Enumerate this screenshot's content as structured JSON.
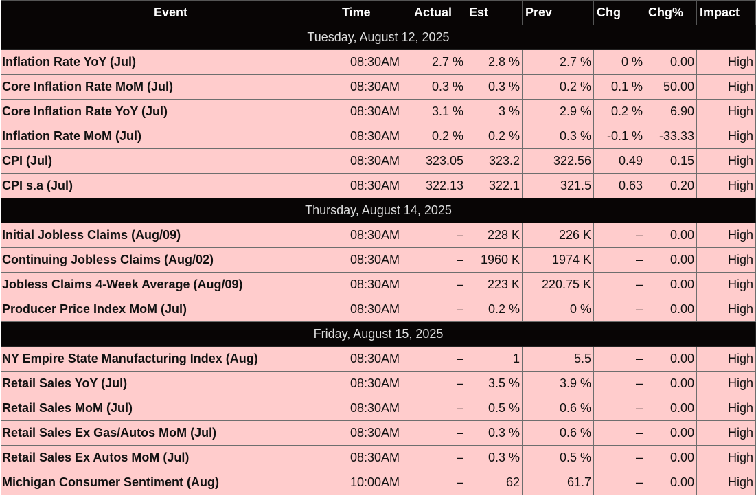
{
  "columns": [
    "Event",
    "Time",
    "Actual",
    "Est",
    "Prev",
    "Chg",
    "Chg%",
    "Impact"
  ],
  "groups": [
    {
      "date": "Tuesday, August 12, 2025",
      "rows": [
        {
          "event": "Inflation Rate YoY (Jul)",
          "time": "08:30AM",
          "actual": "2.7 %",
          "est": "2.8 %",
          "prev": "2.7 %",
          "chg": "0 %",
          "chg_pct": "0.00",
          "impact": "High"
        },
        {
          "event": "Core Inflation Rate MoM (Jul)",
          "time": "08:30AM",
          "actual": "0.3 %",
          "est": "0.3 %",
          "prev": "0.2 %",
          "chg": "0.1 %",
          "chg_pct": "50.00",
          "impact": "High"
        },
        {
          "event": "Core Inflation Rate YoY (Jul)",
          "time": "08:30AM",
          "actual": "3.1 %",
          "est": "3 %",
          "prev": "2.9 %",
          "chg": "0.2 %",
          "chg_pct": "6.90",
          "impact": "High"
        },
        {
          "event": "Inflation Rate MoM (Jul)",
          "time": "08:30AM",
          "actual": "0.2 %",
          "est": "0.2 %",
          "prev": "0.3 %",
          "chg": "-0.1 %",
          "chg_pct": "-33.33",
          "impact": "High"
        },
        {
          "event": "CPI (Jul)",
          "time": "08:30AM",
          "actual": "323.05",
          "est": "323.2",
          "prev": "322.56",
          "chg": "0.49",
          "chg_pct": "0.15",
          "impact": "High"
        },
        {
          "event": "CPI s.a (Jul)",
          "time": "08:30AM",
          "actual": "322.13",
          "est": "322.1",
          "prev": "321.5",
          "chg": "0.63",
          "chg_pct": "0.20",
          "impact": "High"
        }
      ]
    },
    {
      "date": "Thursday, August 14, 2025",
      "rows": [
        {
          "event": "Initial Jobless Claims (Aug/09)",
          "time": "08:30AM",
          "actual": "–",
          "est": "228 K",
          "prev": "226 K",
          "chg": "–",
          "chg_pct": "0.00",
          "impact": "High"
        },
        {
          "event": "Continuing Jobless Claims (Aug/02)",
          "time": "08:30AM",
          "actual": "–",
          "est": "1960 K",
          "prev": "1974 K",
          "chg": "–",
          "chg_pct": "0.00",
          "impact": "High"
        },
        {
          "event": "Jobless Claims 4-Week Average (Aug/09)",
          "time": "08:30AM",
          "actual": "–",
          "est": "223 K",
          "prev": "220.75 K",
          "chg": "–",
          "chg_pct": "0.00",
          "impact": "High"
        },
        {
          "event": "Producer Price Index MoM (Jul)",
          "time": "08:30AM",
          "actual": "–",
          "est": "0.2 %",
          "prev": "0 %",
          "chg": "–",
          "chg_pct": "0.00",
          "impact": "High"
        }
      ]
    },
    {
      "date": "Friday, August 15, 2025",
      "rows": [
        {
          "event": "NY Empire State Manufacturing Index (Aug)",
          "time": "08:30AM",
          "actual": "–",
          "est": "1",
          "prev": "5.5",
          "chg": "–",
          "chg_pct": "0.00",
          "impact": "High"
        },
        {
          "event": "Retail Sales YoY (Jul)",
          "time": "08:30AM",
          "actual": "–",
          "est": "3.5 %",
          "prev": "3.9 %",
          "chg": "–",
          "chg_pct": "0.00",
          "impact": "High"
        },
        {
          "event": "Retail Sales MoM (Jul)",
          "time": "08:30AM",
          "actual": "–",
          "est": "0.5 %",
          "prev": "0.6 %",
          "chg": "–",
          "chg_pct": "0.00",
          "impact": "High"
        },
        {
          "event": "Retail Sales Ex Gas/Autos MoM (Jul)",
          "time": "08:30AM",
          "actual": "–",
          "est": "0.3 %",
          "prev": "0.6 %",
          "chg": "–",
          "chg_pct": "0.00",
          "impact": "High"
        },
        {
          "event": "Retail Sales Ex Autos MoM (Jul)",
          "time": "08:30AM",
          "actual": "–",
          "est": "0.3 %",
          "prev": "0.5 %",
          "chg": "–",
          "chg_pct": "0.00",
          "impact": "High"
        },
        {
          "event": "Michigan Consumer Sentiment (Aug)",
          "time": "10:00AM",
          "actual": "–",
          "est": "62",
          "prev": "61.7",
          "chg": "–",
          "chg_pct": "0.00",
          "impact": "High"
        }
      ]
    }
  ],
  "colors": {
    "header_bg": "#080505",
    "row_bg": "#ffcccc",
    "border": "#6e6e6e"
  }
}
